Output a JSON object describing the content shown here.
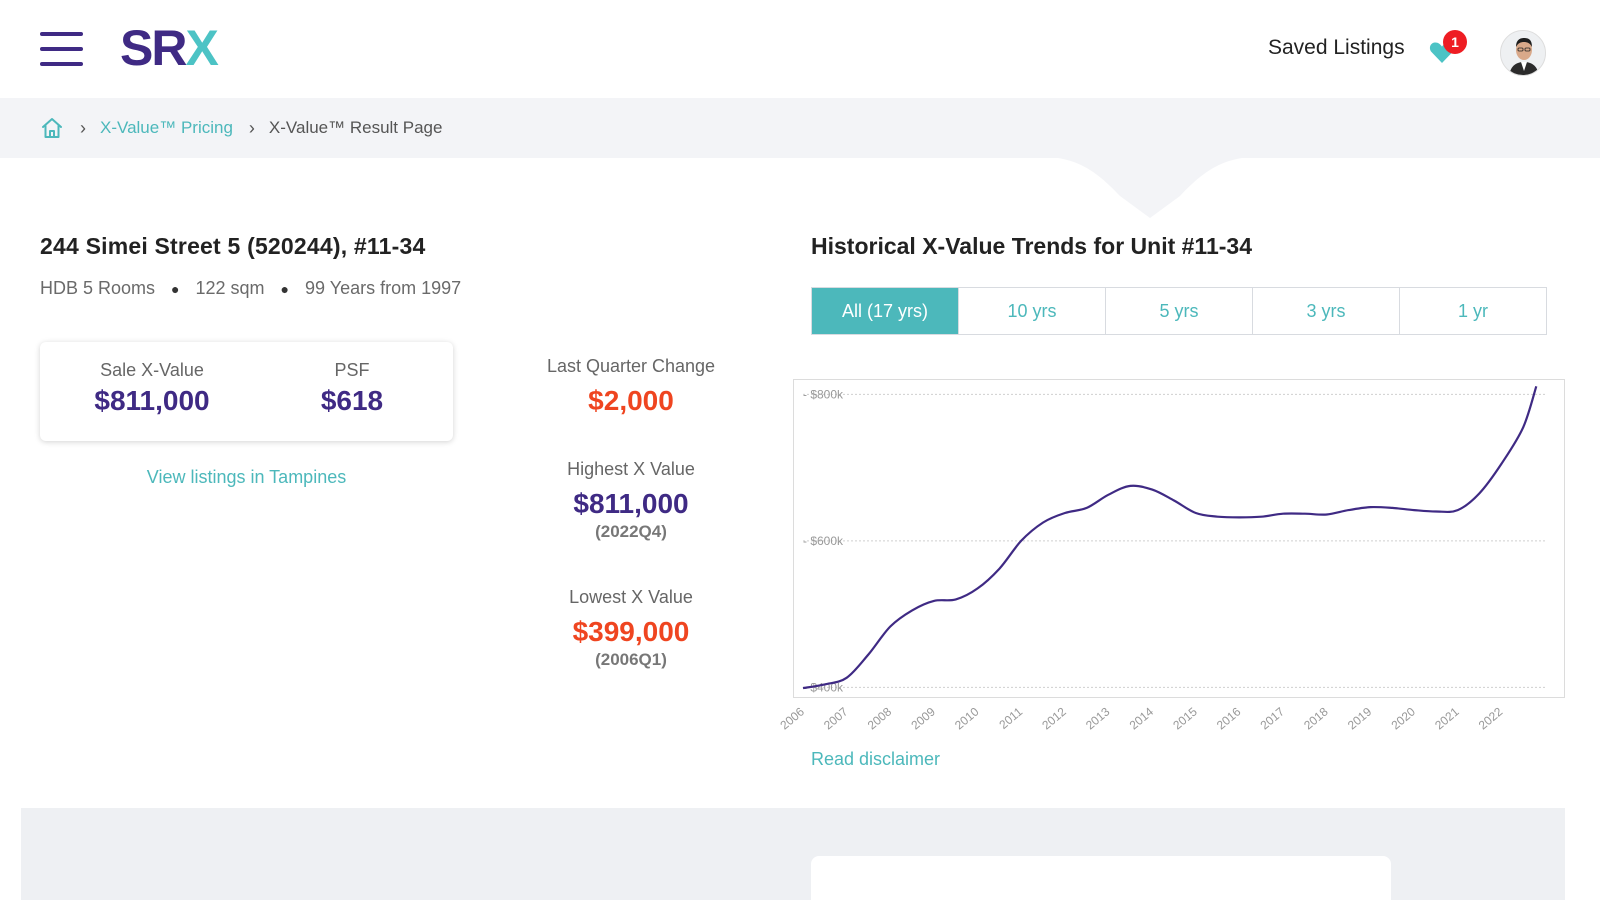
{
  "header": {
    "logo_sr": "SR",
    "logo_x": "X",
    "saved_listings_label": "Saved Listings",
    "saved_count": "1",
    "brand_purple": "#3f2a84",
    "brand_teal": "#4cc3c5"
  },
  "breadcrumb": {
    "home_icon": "home-icon",
    "items": [
      "X-Value™ Pricing",
      "X-Value™ Result Page"
    ]
  },
  "property": {
    "title": "244 Simei Street 5 (520244), #11-34",
    "type": "HDB 5 Rooms",
    "size": "122 sqm",
    "tenure": "99 Years from 1997"
  },
  "value_card": {
    "sale_label": "Sale X-Value",
    "sale_value": "$811,000",
    "psf_label": "PSF",
    "psf_value": "$618"
  },
  "view_listings": "View listings in Tampines",
  "stats": {
    "last_quarter_label": "Last Quarter Change",
    "last_quarter_value": "$2,000",
    "highest_label": "Highest X Value",
    "highest_value": "$811,000",
    "highest_period": "(2022Q4)",
    "lowest_label": "Lowest X Value",
    "lowest_value": "$399,000",
    "lowest_period": "(2006Q1)"
  },
  "chart": {
    "title": "Historical X-Value Trends for Unit #11-34",
    "tabs": [
      "All (17 yrs)",
      "10 yrs",
      "5 yrs",
      "3 yrs",
      "1 yr"
    ],
    "active_tab": 0,
    "disclaimer": "Read disclaimer"
  },
  "chart_data": {
    "type": "line",
    "title": "Historical X-Value Trends for Unit #11-34",
    "xlabel": "",
    "ylabel": "",
    "x_ticks": [
      "2006",
      "2007",
      "2008",
      "2009",
      "2010",
      "2011",
      "2012",
      "2013",
      "2014",
      "2015",
      "2016",
      "2017",
      "2018",
      "2019",
      "2020",
      "2021",
      "2022"
    ],
    "y_ticks": [
      "$400k",
      "$600k",
      "$800k"
    ],
    "y_tick_values": [
      400000,
      600000,
      800000
    ],
    "ylim": [
      395000,
      810000
    ],
    "xlim": [
      2006,
      2023
    ],
    "grid": true,
    "line_color": "#3f2a84",
    "series": [
      {
        "x": [
          2006.0,
          2006.5,
          2007.0,
          2007.5,
          2008.0,
          2008.5,
          2009.0,
          2009.5,
          2010.0,
          2010.5,
          2011.0,
          2011.5,
          2012.0,
          2012.5,
          2013.0,
          2013.5,
          2014.0,
          2014.5,
          2015.0,
          2015.5,
          2016.0,
          2016.5,
          2017.0,
          2017.5,
          2018.0,
          2018.5,
          2019.0,
          2019.5,
          2020.0,
          2020.5,
          2021.0,
          2021.5,
          2022.0,
          2022.5,
          2022.8
        ],
        "y": [
          399000,
          404000,
          413000,
          445000,
          483000,
          505000,
          518000,
          520000,
          535000,
          562000,
          600000,
          625000,
          638000,
          645000,
          663000,
          675000,
          670000,
          655000,
          638000,
          633000,
          632000,
          633000,
          637000,
          637000,
          636000,
          642000,
          646000,
          645000,
          642000,
          640000,
          642000,
          665000,
          705000,
          755000,
          811000
        ]
      }
    ]
  }
}
